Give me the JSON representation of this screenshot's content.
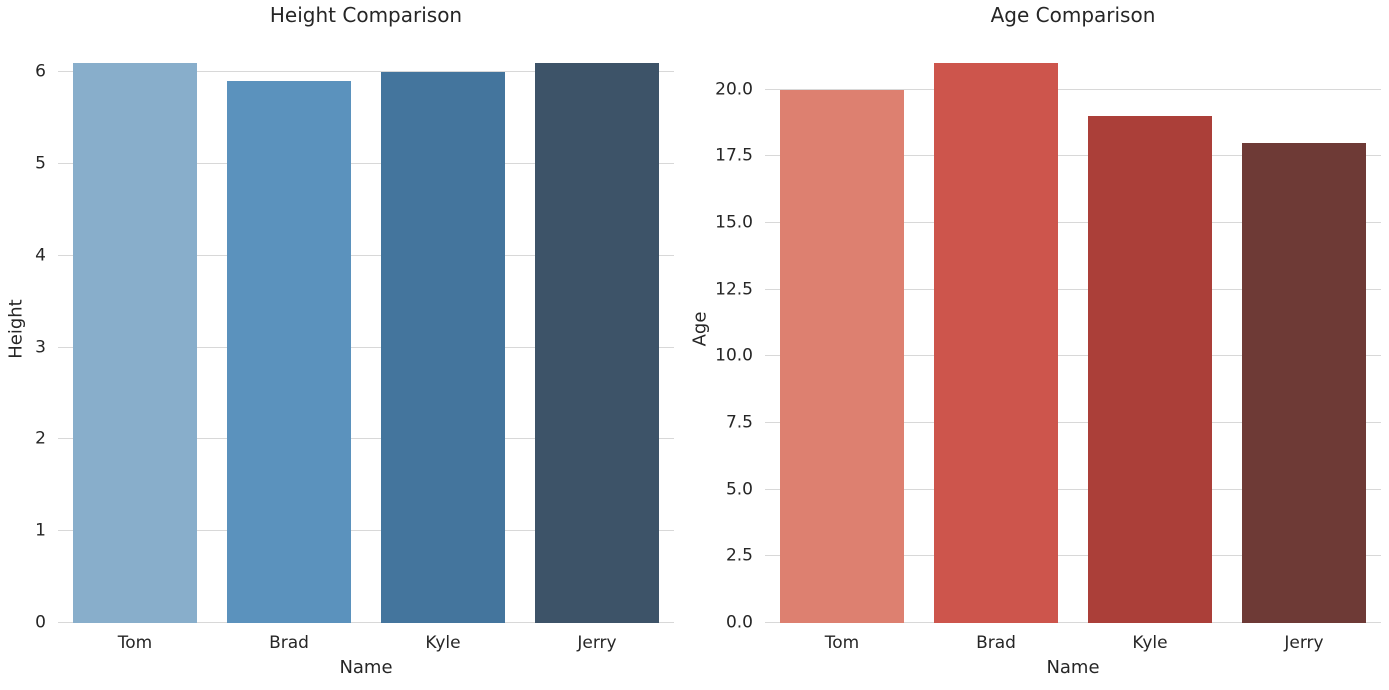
{
  "figure": {
    "background": "#ffffff",
    "grid_color": "#d8d8d8",
    "text_color": "#262626"
  },
  "chart_data": [
    {
      "type": "bar",
      "title": "Height Comparison",
      "xlabel": "Name",
      "ylabel": "Height",
      "categories": [
        "Tom",
        "Brad",
        "Kyle",
        "Jerry"
      ],
      "values": [
        6.1,
        5.9,
        6.0,
        6.1
      ],
      "ylim": [
        0,
        6.405
      ],
      "yticks": [
        0,
        1,
        2,
        3,
        4,
        5,
        6
      ],
      "ytick_labels": [
        "0",
        "1",
        "2",
        "3",
        "4",
        "5",
        "6"
      ],
      "bar_colors": [
        "#88aecb",
        "#5b92bd",
        "#44759d",
        "#3d5368"
      ],
      "bar_width_frac": 0.8,
      "grid": true,
      "legend": false
    },
    {
      "type": "bar",
      "title": "Age Comparison",
      "xlabel": "Name",
      "ylabel": "Age",
      "categories": [
        "Tom",
        "Brad",
        "Kyle",
        "Jerry"
      ],
      "values": [
        20,
        21,
        19,
        18
      ],
      "ylim": [
        0,
        22.05
      ],
      "yticks": [
        0,
        2.5,
        5,
        7.5,
        10,
        12.5,
        15,
        17.5,
        20
      ],
      "ytick_labels": [
        "0.0",
        "2.5",
        "5.0",
        "7.5",
        "10.0",
        "12.5",
        "15.0",
        "17.5",
        "20.0"
      ],
      "bar_colors": [
        "#dd8070",
        "#cd554c",
        "#ab3f39",
        "#6e3a36"
      ],
      "bar_width_frac": 0.8,
      "grid": true,
      "legend": false
    }
  ]
}
